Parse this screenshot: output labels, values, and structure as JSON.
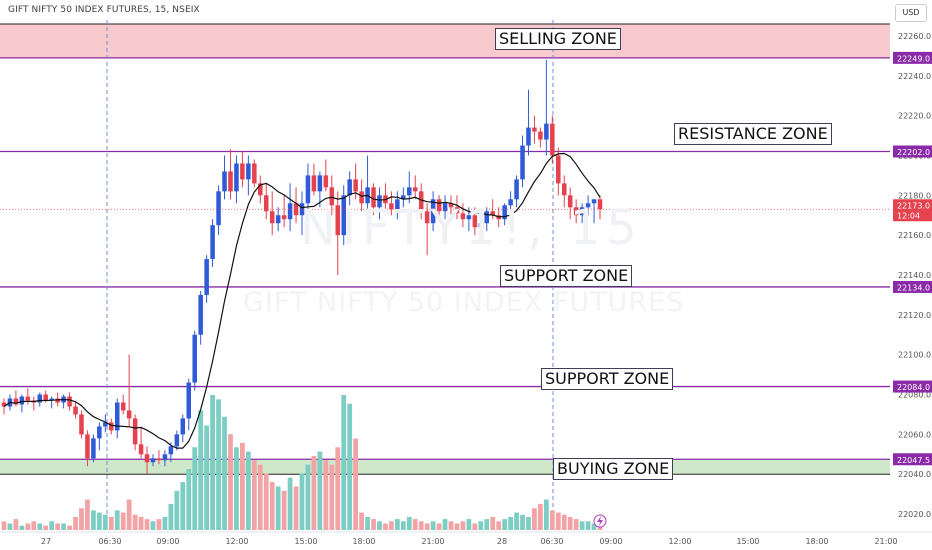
{
  "header": {
    "symbol_title": "GIFT NIFTY 50 INDEX FUTURES, 15, NSEIX",
    "currency": "USD",
    "watermark_symbol": "NIFTY1!, 15",
    "watermark_name": "GIFT NIFTY 50 INDEX FUTURES"
  },
  "colors": {
    "up": "#2f5bd8",
    "down": "#e5424f",
    "vol_up": "#7ccdc4",
    "vol_down": "#f2a3a6",
    "zone_line": "#8a2aa8",
    "sell_zone_fill": "#f8c9cd",
    "buy_zone_fill": "#cfe8c9",
    "price_tag": "#e5424f",
    "level_tag": "#8a2aa8"
  },
  "chart_data": {
    "type": "candlestick",
    "y_range": [
      22012,
      22268
    ],
    "y_ticks": [
      "22260.0",
      "22240.0",
      "22220.0",
      "22200.0",
      "22180.0",
      "22160.0",
      "22140.0",
      "22120.0",
      "22100.0",
      "22080.0",
      "22060.0",
      "22040.0",
      "22020.0"
    ],
    "x_tick_labels": [
      "27",
      "06:30",
      "09:00",
      "12:00",
      "15:00",
      "18:00",
      "21:00",
      "28",
      "06:30",
      "09:00",
      "12:00",
      "15:00",
      "18:00",
      "21:00"
    ],
    "last_price": "22173.0",
    "countdown": "12:04",
    "zones": [
      {
        "label": "SELLING ZONE",
        "level": "22249.0",
        "value": 22249.0,
        "fill": "sell"
      },
      {
        "label": "RESISTANCE ZONE",
        "level": "22202.0",
        "value": 22202.0
      },
      {
        "label": "SUPPORT ZONE",
        "level": "22134.0",
        "value": 22134.0
      },
      {
        "label": "SUPPORT ZONE",
        "level": "22084.0",
        "value": 22084.0
      },
      {
        "label": "BUYING ZONE",
        "level": "22047.5",
        "value": 22047.5,
        "fill": "buy"
      }
    ],
    "candles": [
      [
        22076,
        22078,
        22070,
        22074
      ],
      [
        22074,
        22080,
        22072,
        22078
      ],
      [
        22078,
        22082,
        22074,
        22075
      ],
      [
        22075,
        22080,
        22071,
        22079
      ],
      [
        22079,
        22083,
        22075,
        22077
      ],
      [
        22077,
        22079,
        22072,
        22076
      ],
      [
        22076,
        22081,
        22074,
        22080
      ],
      [
        22080,
        22082,
        22076,
        22077
      ],
      [
        22077,
        22079,
        22073,
        22078
      ],
      [
        22078,
        22081,
        22074,
        22076
      ],
      [
        22076,
        22080,
        22073,
        22079
      ],
      [
        22079,
        22081,
        22072,
        22074
      ],
      [
        22074,
        22076,
        22068,
        22070
      ],
      [
        22070,
        22072,
        22058,
        22060
      ],
      [
        22060,
        22062,
        22044,
        22048
      ],
      [
        22048,
        22060,
        22046,
        22058
      ],
      [
        22058,
        22066,
        22052,
        22064
      ],
      [
        22064,
        22070,
        22061,
        22066
      ],
      [
        22066,
        22068,
        22060,
        22062
      ],
      [
        22062,
        22078,
        22058,
        22076
      ],
      [
        22076,
        22080,
        22070,
        22072
      ],
      [
        22072,
        22100,
        22064,
        22068
      ],
      [
        22068,
        22070,
        22052,
        22055
      ],
      [
        22055,
        22064,
        22048,
        22050
      ],
      [
        22050,
        22054,
        22040,
        22046
      ],
      [
        22046,
        22050,
        22044,
        22048
      ],
      [
        22048,
        22052,
        22045,
        22047
      ],
      [
        22047,
        22052,
        22044,
        22050
      ],
      [
        22050,
        22056,
        22046,
        22054
      ],
      [
        22054,
        22062,
        22052,
        22060
      ],
      [
        22060,
        22070,
        22056,
        22068
      ],
      [
        22068,
        22088,
        22062,
        22086
      ],
      [
        22086,
        22112,
        22082,
        22110
      ],
      [
        22110,
        22132,
        22105,
        22130
      ],
      [
        22130,
        22150,
        22126,
        22148
      ],
      [
        22148,
        22168,
        22144,
        22165
      ],
      [
        22165,
        22185,
        22160,
        22182
      ],
      [
        22182,
        22200,
        22178,
        22192
      ],
      [
        22192,
        22203,
        22178,
        22182
      ],
      [
        22182,
        22200,
        22176,
        22196
      ],
      [
        22196,
        22202,
        22184,
        22188
      ],
      [
        22188,
        22200,
        22180,
        22196
      ],
      [
        22196,
        22198,
        22184,
        22186
      ],
      [
        22186,
        22190,
        22176,
        22180
      ],
      [
        22180,
        22186,
        22168,
        22172
      ],
      [
        22172,
        22182,
        22160,
        22166
      ],
      [
        22166,
        22174,
        22162,
        22170
      ],
      [
        22170,
        22180,
        22164,
        22168
      ],
      [
        22168,
        22186,
        22162,
        22176
      ],
      [
        22176,
        22184,
        22166,
        22170
      ],
      [
        22170,
        22182,
        22160,
        22176
      ],
      [
        22176,
        22196,
        22172,
        22190
      ],
      [
        22190,
        22196,
        22180,
        22182
      ],
      [
        22182,
        22192,
        22174,
        22190
      ],
      [
        22190,
        22198,
        22182,
        22184
      ],
      [
        22184,
        22190,
        22170,
        22175
      ],
      [
        22175,
        22182,
        22140,
        22160
      ],
      [
        22160,
        22185,
        22155,
        22180
      ],
      [
        22180,
        22192,
        22175,
        22188
      ],
      [
        22188,
        22196,
        22178,
        22182
      ],
      [
        22182,
        22188,
        22172,
        22176
      ],
      [
        22176,
        22200,
        22170,
        22184
      ],
      [
        22184,
        22186,
        22170,
        22174
      ],
      [
        22174,
        22184,
        22168,
        22180
      ],
      [
        22180,
        22186,
        22172,
        22176
      ],
      [
        22176,
        22182,
        22170,
        22173
      ],
      [
        22173,
        22182,
        22168,
        22178
      ],
      [
        22178,
        22184,
        22174,
        22180
      ],
      [
        22180,
        22192,
        22176,
        22184
      ],
      [
        22184,
        22190,
        22178,
        22182
      ],
      [
        22182,
        22186,
        22168,
        22172
      ],
      [
        22172,
        22176,
        22150,
        22166
      ],
      [
        22166,
        22182,
        22162,
        22178
      ],
      [
        22178,
        22180,
        22168,
        22172
      ],
      [
        22172,
        22180,
        22168,
        22176
      ],
      [
        22176,
        22180,
        22170,
        22174
      ],
      [
        22174,
        22180,
        22168,
        22171
      ],
      [
        22171,
        22176,
        22164,
        22168
      ],
      [
        22168,
        22174,
        22162,
        22170
      ],
      [
        22170,
        22174,
        22160,
        22164
      ],
      [
        22164,
        22170,
        22160,
        22166
      ],
      [
        22166,
        22174,
        22162,
        22172
      ],
      [
        22172,
        22178,
        22168,
        22170
      ],
      [
        22170,
        22174,
        22164,
        22168
      ],
      [
        22168,
        22176,
        22165,
        22175
      ],
      [
        22175,
        22182,
        22170,
        22178
      ],
      [
        22178,
        22190,
        22174,
        22188
      ],
      [
        22188,
        22210,
        22184,
        22205
      ],
      [
        22205,
        22233,
        22200,
        22214
      ],
      [
        22214,
        22220,
        22206,
        22212
      ],
      [
        22212,
        22214,
        22204,
        22208
      ],
      [
        22208,
        22248,
        22200,
        22216
      ],
      [
        22216,
        22220,
        22196,
        22200
      ],
      [
        22200,
        22204,
        22180,
        22186
      ],
      [
        22186,
        22190,
        22174,
        22180
      ],
      [
        22180,
        22184,
        22168,
        22174
      ],
      [
        22174,
        22178,
        22166,
        22170
      ],
      [
        22170,
        22176,
        22166,
        22174
      ],
      [
        22174,
        22180,
        22170,
        22176
      ],
      [
        22176,
        22178,
        22166,
        22178
      ],
      [
        22178,
        22180,
        22168,
        22173
      ]
    ],
    "volumes": [
      4,
      3,
      5,
      2,
      3,
      4,
      3,
      2,
      4,
      3,
      3,
      2,
      6,
      10,
      14,
      9,
      8,
      7,
      6,
      9,
      8,
      14,
      7,
      6,
      5,
      4,
      5,
      6,
      12,
      18,
      22,
      28,
      38,
      55,
      48,
      62,
      60,
      52,
      44,
      38,
      40,
      36,
      32,
      30,
      26,
      22,
      20,
      18,
      24,
      20,
      26,
      30,
      34,
      36,
      32,
      30,
      38,
      62,
      58,
      42,
      8,
      6,
      5,
      4,
      3,
      4,
      5,
      4,
      6,
      5,
      4,
      3,
      4,
      3,
      5,
      4,
      3,
      4,
      5,
      3,
      4,
      5,
      6,
      4,
      5,
      6,
      8,
      7,
      6,
      10,
      12,
      14,
      9,
      8,
      7,
      6,
      5,
      4,
      4,
      3,
      4
    ],
    "volume_max": 62
  }
}
